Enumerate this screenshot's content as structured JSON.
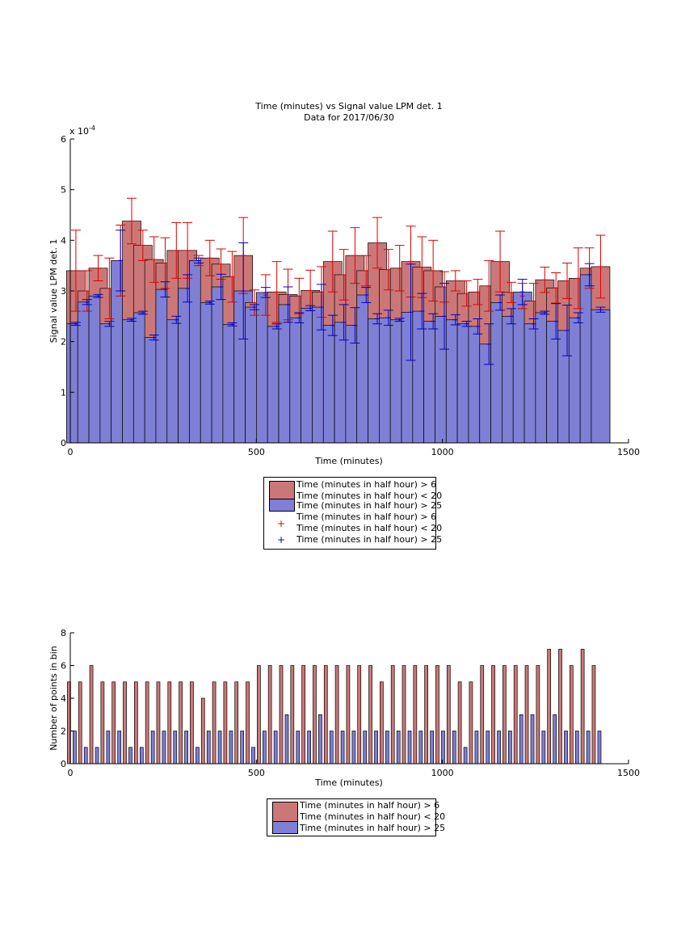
{
  "chart_data": [
    {
      "type": "bar",
      "title": "Time (minutes) vs Signal value LPM det. 1",
      "subtitle": "Data for 2017/06/30",
      "xlabel": "Time (minutes)",
      "ylabel": "Signal value LPM det. 1",
      "exponent_label": "x 10",
      "exponent": "-4",
      "xlim": [
        0,
        1500
      ],
      "ylim": [
        0,
        6
      ],
      "xticks": [
        "0",
        "500",
        "1000",
        "1500"
      ],
      "yticks": [
        "0",
        "1",
        "2",
        "3",
        "4",
        "5",
        "6"
      ],
      "colors": {
        "red": "#cc7777",
        "blue": "#7f7fd6",
        "red_err": "#dd0000",
        "blue_err": "#0000cc"
      },
      "x": [
        15,
        45,
        75,
        105,
        135,
        165,
        195,
        225,
        255,
        285,
        315,
        345,
        375,
        405,
        435,
        465,
        495,
        525,
        555,
        585,
        615,
        645,
        675,
        705,
        735,
        765,
        795,
        825,
        855,
        885,
        915,
        945,
        975,
        1005,
        1035,
        1065,
        1095,
        1125,
        1155,
        1185,
        1215,
        1245,
        1275,
        1305,
        1335,
        1365,
        1395,
        1425
      ],
      "series": [
        {
          "name": "Time (minutes in half hour) > 6 Time (minutes in half hour) < 20",
          "values": [
            3.4,
            3.0,
            3.45,
            3.05,
            3.6,
            4.38,
            3.9,
            3.62,
            3.55,
            3.8,
            3.8,
            3.6,
            3.65,
            3.53,
            3.28,
            3.7,
            2.77,
            2.92,
            2.98,
            2.93,
            2.9,
            3.01,
            2.98,
            3.58,
            3.32,
            3.7,
            3.4,
            3.95,
            3.42,
            3.45,
            3.58,
            3.47,
            3.4,
            3.08,
            3.2,
            2.95,
            2.98,
            3.1,
            3.58,
            2.97,
            2.9,
            2.8,
            3.22,
            3.06,
            3.2,
            3.25,
            3.45,
            3.48
          ],
          "err": [
            0.8,
            0.4,
            0.25,
            0.6,
            0.7,
            0.45,
            0.3,
            0.45,
            0.5,
            0.55,
            0.55,
            0.1,
            0.35,
            0.3,
            0.5,
            0.75,
            0.25,
            0.4,
            0.6,
            0.5,
            0.35,
            0.4,
            0.5,
            0.6,
            0.5,
            0.55,
            0.3,
            0.5,
            0.4,
            0.45,
            0.7,
            0.6,
            0.6,
            0.3,
            0.2,
            0.25,
            0.25,
            0.5,
            0.6,
            0.2,
            0.25,
            0.35,
            0.25,
            0.3,
            0.35,
            0.6,
            0.4,
            0.62
          ]
        },
        {
          "name": "Time (minutes in half hour) > 25",
          "values": [
            2.35,
            2.78,
            2.9,
            2.35,
            3.6,
            2.43,
            2.57,
            2.08,
            3.03,
            2.43,
            3.05,
            3.6,
            2.77,
            3.08,
            2.34,
            3.0,
            2.68,
            2.97,
            2.3,
            2.73,
            2.47,
            2.66,
            2.68,
            2.32,
            2.38,
            2.32,
            2.92,
            2.45,
            2.47,
            2.43,
            2.58,
            2.6,
            2.4,
            2.5,
            2.43,
            2.35,
            2.3,
            1.95,
            2.77,
            2.5,
            2.98,
            2.35,
            2.57,
            2.4,
            2.22,
            2.47,
            3.32,
            2.63
          ],
          "err": [
            0.03,
            0.05,
            0.03,
            0.05,
            0.6,
            0.03,
            0.03,
            0.05,
            0.15,
            0.07,
            0.27,
            0.05,
            0.03,
            0.25,
            0.03,
            0.95,
            0.05,
            0.1,
            0.05,
            0.35,
            0.1,
            0.05,
            0.45,
            0.2,
            0.35,
            0.35,
            0.15,
            0.1,
            0.15,
            0.03,
            0.95,
            0.35,
            0.15,
            0.65,
            0.1,
            0.05,
            0.15,
            0.4,
            0.15,
            0.15,
            0.25,
            0.1,
            0.03,
            0.35,
            0.5,
            0.1,
            0.22,
            0.05
          ]
        }
      ],
      "legend": {
        "placement": "below",
        "entries": [
          {
            "line1": "Time (minutes in half hour) > 6",
            "line2": "Time (minutes in half hour) < 20",
            "kind": "bar",
            "color": "#cc7777"
          },
          {
            "line1": "Time (minutes in half hour) > 25",
            "kind": "bar",
            "color": "#7f7fd6"
          },
          {
            "line1": "Time (minutes in half hour) > 6",
            "line2": "Time (minutes in half hour) < 20",
            "kind": "marker",
            "marker": "+",
            "color": "#dd0000"
          },
          {
            "line1": "Time (minutes in half hour) > 25",
            "kind": "marker",
            "marker": "+",
            "color": "#0000cc"
          }
        ]
      }
    },
    {
      "type": "bar",
      "xlabel": "Time (minutes)",
      "ylabel": "Number of points in bin",
      "xlim": [
        0,
        1500
      ],
      "ylim": [
        0,
        8
      ],
      "xticks": [
        "0",
        "500",
        "1000",
        "1500"
      ],
      "yticks": [
        "0",
        "2",
        "4",
        "6",
        "8"
      ],
      "x": [
        15,
        45,
        75,
        105,
        135,
        165,
        195,
        225,
        255,
        285,
        315,
        345,
        375,
        405,
        435,
        465,
        495,
        525,
        555,
        585,
        615,
        645,
        675,
        705,
        735,
        765,
        795,
        825,
        855,
        885,
        915,
        945,
        975,
        1005,
        1035,
        1065,
        1095,
        1125,
        1155,
        1185,
        1215,
        1245,
        1275,
        1305,
        1335,
        1365,
        1395,
        1425
      ],
      "series": [
        {
          "name": "Time (minutes in half hour) > 6 Time (minutes in half hour) < 20",
          "values": [
            5,
            5,
            6,
            5,
            5,
            5,
            5,
            5,
            5,
            5,
            5,
            5,
            4,
            5,
            5,
            5,
            5,
            6,
            6,
            6,
            6,
            6,
            6,
            6,
            6,
            6,
            6,
            6,
            5,
            6,
            6,
            6,
            6,
            6,
            6,
            5,
            5,
            6,
            6,
            6,
            6,
            6,
            6,
            7,
            7,
            6,
            7,
            6
          ]
        },
        {
          "name": "Time (minutes in half hour) > 25",
          "values": [
            2,
            1,
            1,
            2,
            2,
            1,
            1,
            2,
            2,
            2,
            2,
            1,
            2,
            2,
            2,
            2,
            1,
            2,
            2,
            3,
            2,
            2,
            3,
            2,
            2,
            2,
            2,
            2,
            2,
            2,
            2,
            2,
            2,
            2,
            2,
            1,
            2,
            2,
            2,
            2,
            3,
            3,
            2,
            3,
            2,
            2,
            2,
            2
          ]
        }
      ],
      "legend": {
        "placement": "below",
        "entries": [
          {
            "line1": "Time (minutes in half hour) > 6",
            "line2": "Time (minutes in half hour) < 20",
            "color": "#cc7777"
          },
          {
            "line1": "Time (minutes in half hour) > 25",
            "color": "#7f7fd6"
          }
        ]
      }
    }
  ]
}
